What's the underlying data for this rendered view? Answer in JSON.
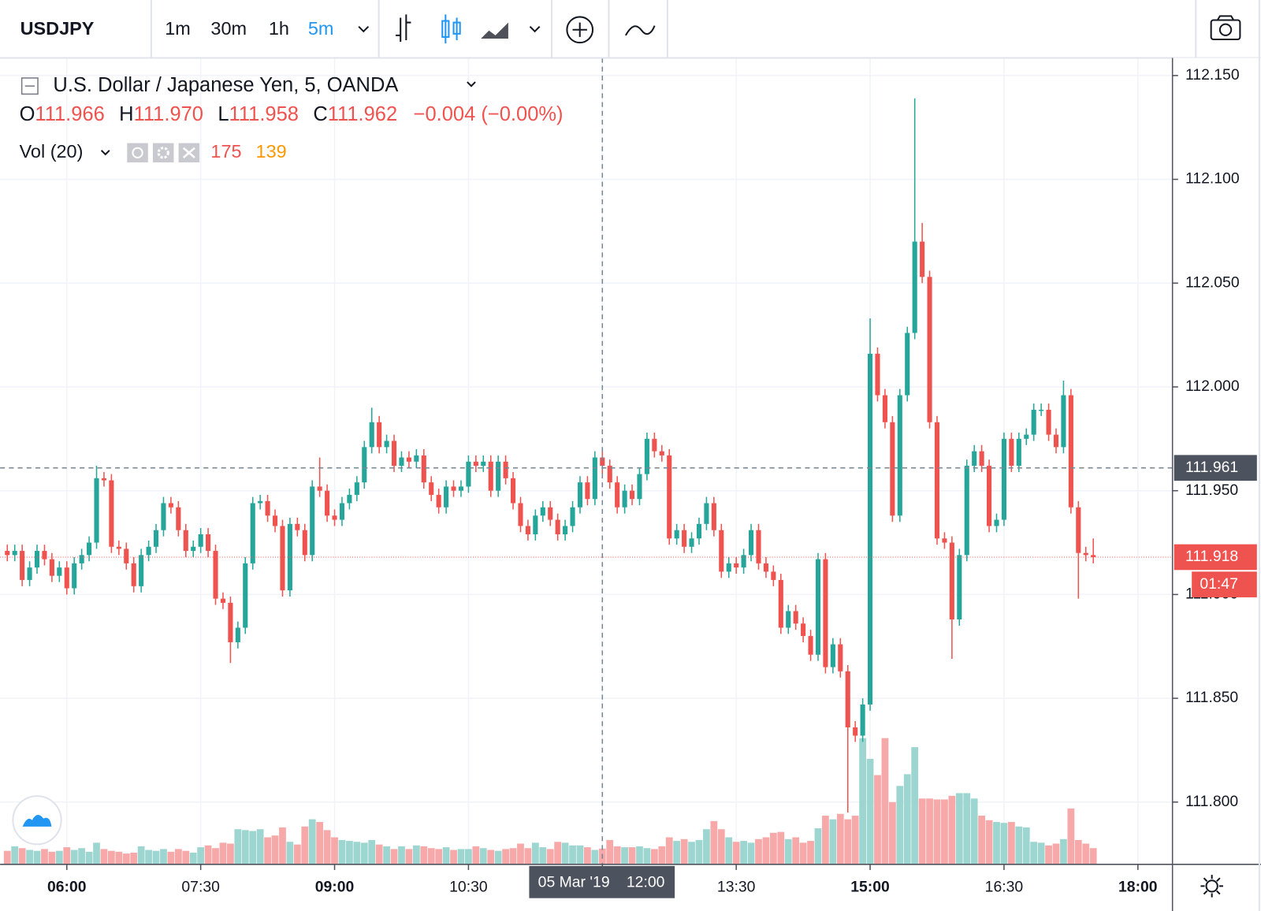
{
  "toolbar": {
    "symbol": "USDJPY",
    "intervals": [
      "1m",
      "30m",
      "1h",
      "5m"
    ],
    "active_interval": 3
  },
  "legend": {
    "title": "U.S. Dollar / Japanese Yen, 5, OANDA",
    "o_label": "O",
    "open": "111.966",
    "h_label": "H",
    "high": "111.970",
    "l_label": "L",
    "low": "111.958",
    "c_label": "C",
    "close": "111.962",
    "change": "−0.004 (−0.00%)",
    "volume_label": "Vol (20)",
    "volume": "175",
    "volume_ma": "139"
  },
  "chart_data": {
    "type": "candlestick",
    "open": [
      111.921,
      111.919,
      111.921,
      111.907,
      111.913,
      111.921,
      111.917,
      111.909,
      111.913,
      111.903,
      111.915,
      111.919,
      111.925,
      111.956,
      111.955,
      111.923,
      111.922,
      111.915,
      111.904,
      111.919,
      111.923,
      111.931,
      111.944,
      111.942,
      111.931,
      111.921,
      111.923,
      111.929,
      111.921,
      111.898,
      111.896,
      111.877,
      111.884,
      111.915,
      111.944,
      111.945,
      111.938,
      111.933,
      111.902,
      111.934,
      111.931,
      111.919,
      111.952,
      111.95,
      111.938,
      111.936,
      111.944,
      111.948,
      111.954,
      111.971,
      111.983,
      111.971,
      111.974,
      111.962,
      111.966,
      111.964,
      111.967,
      111.954,
      111.948,
      111.942,
      111.952,
      111.95,
      111.952,
      111.964,
      111.962,
      111.964,
      111.95,
      111.964,
      111.956,
      111.944,
      111.933,
      111.929,
      111.938,
      111.942,
      111.936,
      111.929,
      111.933,
      111.942,
      111.954,
      111.946,
      111.966,
      111.962,
      111.954,
      111.942,
      111.95,
      111.946,
      111.958,
      111.975,
      111.969,
      111.967,
      111.927,
      111.931,
      111.923,
      111.927,
      111.934,
      111.944,
      111.931,
      111.911,
      111.915,
      111.913,
      111.919,
      111.931,
      111.915,
      111.911,
      111.907,
      111.884,
      111.892,
      111.886,
      111.88,
      111.871,
      111.917,
      111.865,
      111.876,
      111.863,
      111.836,
      111.832,
      111.847,
      112.016,
      111.996,
      111.983,
      111.938,
      111.996,
      112.026,
      112.07,
      112.053,
      111.983,
      111.927,
      111.925,
      111.888,
      111.919,
      111.962,
      111.969,
      111.962,
      111.933,
      111.936,
      111.975,
      111.962,
      111.975,
      111.977,
      111.989,
      111.989,
      111.977,
      111.971,
      111.996,
      111.942,
      111.92,
      111.919
    ],
    "high": [
      111.924,
      111.924,
      111.924,
      111.916,
      111.924,
      111.924,
      111.92,
      111.916,
      111.916,
      111.918,
      111.922,
      111.928,
      111.962,
      111.959,
      111.958,
      111.926,
      111.925,
      111.918,
      111.922,
      111.926,
      111.934,
      111.947,
      111.947,
      111.945,
      111.934,
      111.926,
      111.932,
      111.932,
      111.924,
      111.901,
      111.899,
      111.887,
      111.918,
      111.947,
      111.948,
      111.948,
      111.941,
      111.936,
      111.937,
      111.937,
      111.934,
      111.955,
      111.966,
      111.953,
      111.941,
      111.947,
      111.951,
      111.957,
      111.974,
      111.99,
      111.986,
      111.977,
      111.977,
      111.969,
      111.969,
      111.97,
      111.97,
      111.957,
      111.951,
      111.955,
      111.955,
      111.955,
      111.967,
      111.967,
      111.967,
      111.967,
      111.967,
      111.967,
      111.959,
      111.947,
      111.936,
      111.941,
      111.945,
      111.945,
      111.939,
      111.936,
      111.945,
      111.957,
      111.957,
      111.969,
      111.97,
      111.965,
      111.957,
      111.953,
      111.953,
      111.961,
      111.978,
      111.978,
      111.972,
      111.97,
      111.934,
      111.934,
      111.93,
      111.937,
      111.947,
      111.947,
      111.934,
      111.918,
      111.918,
      111.922,
      111.934,
      111.934,
      111.918,
      111.914,
      111.91,
      111.895,
      111.895,
      111.889,
      111.883,
      111.92,
      111.92,
      111.879,
      111.879,
      111.866,
      111.839,
      111.85,
      112.033,
      112.019,
      111.999,
      111.986,
      111.999,
      112.029,
      112.139,
      112.079,
      112.056,
      111.986,
      111.93,
      111.928,
      111.922,
      111.965,
      111.972,
      111.972,
      111.965,
      111.939,
      111.978,
      111.978,
      111.978,
      111.98,
      111.992,
      111.992,
      111.992,
      111.98,
      112.003,
      111.999,
      111.945,
      111.923,
      111.927
    ],
    "low": [
      111.916,
      111.916,
      111.904,
      111.904,
      111.91,
      111.914,
      111.906,
      111.906,
      111.9,
      111.9,
      111.912,
      111.916,
      111.922,
      111.952,
      111.92,
      111.919,
      111.912,
      111.901,
      111.901,
      111.916,
      111.92,
      111.928,
      111.939,
      111.928,
      111.918,
      111.918,
      111.92,
      111.918,
      111.895,
      111.893,
      111.867,
      111.874,
      111.881,
      111.912,
      111.941,
      111.935,
      111.93,
      111.899,
      111.899,
      111.928,
      111.916,
      111.916,
      111.947,
      111.935,
      111.933,
      111.933,
      111.941,
      111.945,
      111.951,
      111.968,
      111.968,
      111.968,
      111.959,
      111.959,
      111.961,
      111.961,
      111.951,
      111.945,
      111.939,
      111.939,
      111.947,
      111.947,
      111.949,
      111.959,
      111.959,
      111.947,
      111.947,
      111.953,
      111.941,
      111.93,
      111.926,
      111.926,
      111.935,
      111.933,
      111.926,
      111.926,
      111.93,
      111.939,
      111.943,
      111.943,
      111.958,
      111.951,
      111.939,
      111.939,
      111.943,
      111.943,
      111.955,
      111.966,
      111.964,
      111.924,
      111.924,
      111.92,
      111.92,
      111.924,
      111.931,
      111.928,
      111.908,
      111.908,
      111.91,
      111.91,
      111.916,
      111.912,
      111.908,
      111.904,
      111.881,
      111.881,
      111.883,
      111.877,
      111.868,
      111.868,
      111.862,
      111.862,
      111.86,
      111.795,
      111.829,
      111.829,
      111.844,
      111.993,
      111.98,
      111.935,
      111.935,
      111.993,
      112.023,
      112.05,
      111.98,
      111.924,
      111.922,
      111.869,
      111.885,
      111.916,
      111.959,
      111.959,
      111.93,
      111.93,
      111.933,
      111.959,
      111.959,
      111.972,
      111.974,
      111.986,
      111.974,
      111.968,
      111.968,
      111.939,
      111.898,
      111.916,
      111.915
    ],
    "close": [
      111.919,
      111.921,
      111.907,
      111.913,
      111.921,
      111.917,
      111.909,
      111.913,
      111.903,
      111.915,
      111.919,
      111.925,
      111.956,
      111.955,
      111.923,
      111.922,
      111.915,
      111.904,
      111.919,
      111.923,
      111.931,
      111.944,
      111.942,
      111.931,
      111.921,
      111.923,
      111.929,
      111.921,
      111.898,
      111.896,
      111.877,
      111.884,
      111.915,
      111.944,
      111.945,
      111.938,
      111.933,
      111.902,
      111.934,
      111.931,
      111.919,
      111.952,
      111.95,
      111.938,
      111.936,
      111.944,
      111.948,
      111.954,
      111.971,
      111.983,
      111.971,
      111.974,
      111.962,
      111.966,
      111.964,
      111.967,
      111.954,
      111.948,
      111.942,
      111.952,
      111.95,
      111.952,
      111.964,
      111.962,
      111.964,
      111.95,
      111.964,
      111.956,
      111.944,
      111.933,
      111.929,
      111.938,
      111.942,
      111.936,
      111.929,
      111.933,
      111.942,
      111.954,
      111.946,
      111.966,
      111.962,
      111.954,
      111.942,
      111.95,
      111.946,
      111.958,
      111.975,
      111.969,
      111.967,
      111.927,
      111.931,
      111.923,
      111.927,
      111.934,
      111.944,
      111.931,
      111.911,
      111.915,
      111.913,
      111.919,
      111.931,
      111.915,
      111.911,
      111.907,
      111.884,
      111.892,
      111.886,
      111.88,
      111.871,
      111.917,
      111.865,
      111.876,
      111.863,
      111.836,
      111.832,
      111.847,
      112.016,
      111.996,
      111.983,
      111.938,
      111.996,
      112.026,
      112.07,
      112.053,
      111.983,
      111.927,
      111.925,
      111.888,
      111.919,
      111.962,
      111.969,
      111.962,
      111.933,
      111.936,
      111.975,
      111.962,
      111.975,
      111.977,
      111.989,
      111.989,
      111.977,
      111.971,
      111.996,
      111.942,
      111.92,
      111.919,
      111.918
    ],
    "volume": [
      150,
      200,
      180,
      160,
      150,
      170,
      140,
      150,
      190,
      160,
      180,
      140,
      240,
      170,
      150,
      140,
      120,
      130,
      200,
      160,
      150,
      170,
      140,
      170,
      150,
      130,
      190,
      210,
      180,
      240,
      230,
      390,
      380,
      370,
      390,
      300,
      320,
      410,
      250,
      220,
      420,
      500,
      470,
      380,
      300,
      270,
      260,
      250,
      240,
      270,
      220,
      200,
      170,
      200,
      170,
      210,
      200,
      180,
      170,
      190,
      160,
      170,
      170,
      200,
      180,
      160,
      150,
      170,
      180,
      230,
      180,
      240,
      190,
      170,
      250,
      240,
      210,
      210,
      190,
      160,
      175,
      270,
      200,
      190,
      190,
      200,
      180,
      170,
      200,
      300,
      260,
      280,
      250,
      270,
      390,
      480,
      390,
      300,
      250,
      260,
      240,
      280,
      300,
      350,
      360,
      280,
      300,
      240,
      260,
      400,
      540,
      500,
      560,
      500,
      540,
      1400,
      1170,
      990,
      1400,
      690,
      870,
      1000,
      1300,
      730,
      730,
      720,
      720,
      760,
      790,
      790,
      730,
      540,
      490,
      470,
      460,
      470,
      420,
      410,
      250,
      240,
      210,
      230,
      280,
      620,
      270,
      230,
      180
    ],
    "up_color": "#26a69a",
    "down_color": "#ef5350",
    "up_volume_color": "#9dd6d0",
    "down_volume_color": "#f6a9a8",
    "ylim": [
      111.77,
      112.1585
    ],
    "yticks": [
      {
        "value": 112.15,
        "label": "112.150"
      },
      {
        "value": 112.1,
        "label": "112.100"
      },
      {
        "value": 112.05,
        "label": "112.050"
      },
      {
        "value": 112,
        "label": "112.000"
      },
      {
        "value": 111.95,
        "label": "111.950"
      },
      {
        "value": 111.9,
        "label": "111.900"
      },
      {
        "value": 111.85,
        "label": "111.850"
      },
      {
        "value": 111.8,
        "label": "111.800"
      }
    ],
    "xticks": [
      {
        "value": 8,
        "label": "06:00",
        "bold": true
      },
      {
        "value": 26,
        "label": "07:30"
      },
      {
        "value": 44,
        "label": "09:00",
        "bold": true
      },
      {
        "value": 62,
        "label": "10:30"
      },
      {
        "value": 80,
        "label": "12:00"
      },
      {
        "value": 98,
        "label": "13:30"
      },
      {
        "value": 116,
        "label": "15:00",
        "bold": true
      },
      {
        "value": 134,
        "label": "16:30"
      },
      {
        "value": 152,
        "label": "18:00",
        "bold": true
      }
    ],
    "grid": true,
    "crosshair": {
      "index": 80,
      "price": 111.961,
      "date_label": "05 Mar '19",
      "time_label": "12:00"
    },
    "last_price": {
      "value": 111.918,
      "countdown": "01:47"
    }
  }
}
